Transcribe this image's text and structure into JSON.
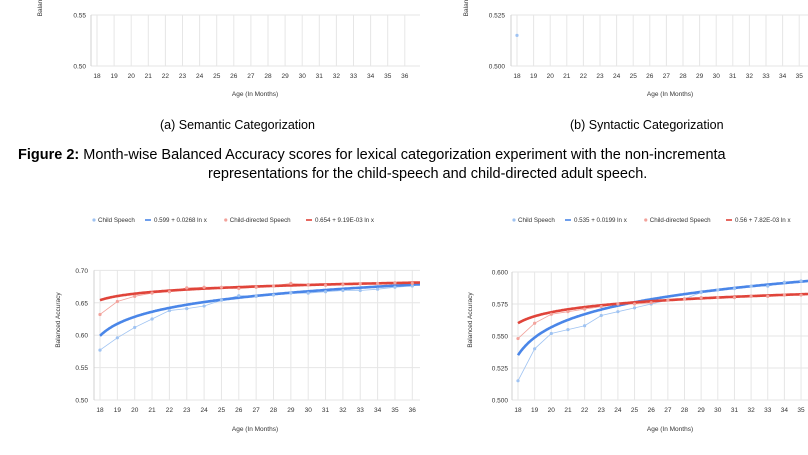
{
  "captions": {
    "a": "(a) Semantic Categorization",
    "b": "(b) Syntactic Categorization",
    "figure_label": "Figure 2:",
    "figure_line1": " Month-wise Balanced Accuracy scores for lexical categorization experiment with the non-incrementa",
    "figure_line2": "representations for the child-speech and child-directed adult speech."
  },
  "colors": {
    "child": "#4a86e8",
    "child_points": "#9fc3f2",
    "adult": "#e0443a",
    "adult_points": "#f2a29b",
    "grid": "#e6e6e6"
  },
  "chart_data": [
    {
      "type": "scatter",
      "id": "top-left",
      "xlabel": "Age (In Months)",
      "ylabel": "Balan",
      "x_ticks": [
        18,
        19,
        20,
        21,
        22,
        23,
        24,
        25,
        26,
        27,
        28,
        29,
        30,
        31,
        32,
        33,
        34,
        35,
        36
      ],
      "y_ticks": [
        "0.50",
        "0.55"
      ],
      "ylim": [
        0.5,
        0.57
      ],
      "series": [
        {
          "key": "child",
          "trend": {
            "a": 0.599,
            "b": 0.0268
          }
        }
      ]
    },
    {
      "type": "scatter",
      "id": "top-right",
      "xlabel": "Age (In Months)",
      "ylabel": "Balan",
      "x_ticks": [
        18,
        19,
        20,
        21,
        22,
        23,
        24,
        25,
        26,
        27,
        28,
        29,
        30,
        31,
        32,
        33,
        34,
        35
      ],
      "y_ticks": [
        "0.500",
        "0.525"
      ],
      "ylim": [
        0.5,
        0.535
      ],
      "series": [
        {
          "key": "child",
          "trend": {
            "a": 0.535,
            "b": 0.0199
          },
          "points": [
            [
              18,
              0.515
            ]
          ]
        }
      ]
    },
    {
      "type": "scatter",
      "id": "bottom-left",
      "xlabel": "Age (In Months)",
      "ylabel": "Balanced Accuracy",
      "x_ticks": [
        18,
        19,
        20,
        21,
        22,
        23,
        24,
        25,
        26,
        27,
        28,
        29,
        30,
        31,
        32,
        33,
        34,
        35,
        36
      ],
      "y_ticks": [
        "0.50",
        "0.55",
        "0.60",
        "0.65",
        "0.70"
      ],
      "ylim": [
        0.5,
        0.7
      ],
      "legend": [
        {
          "key": "child_points",
          "label": "Child Speech",
          "marker": "dot"
        },
        {
          "key": "child",
          "label": "0.599 + 0.0268 ln x",
          "marker": "line"
        },
        {
          "key": "adult_points",
          "label": "Child-directed Speech",
          "marker": "dot"
        },
        {
          "key": "adult",
          "label": "0.654 + 9.19E-03 ln x",
          "marker": "line"
        }
      ],
      "series": [
        {
          "key": "child",
          "name": "Child Speech",
          "trend": {
            "a": 0.599,
            "b": 0.0268
          },
          "points": [
            [
              18,
              0.577
            ],
            [
              19,
              0.596
            ],
            [
              20,
              0.612
            ],
            [
              21,
              0.625
            ],
            [
              22,
              0.638
            ],
            [
              23,
              0.641
            ],
            [
              24,
              0.645
            ],
            [
              25,
              0.654
            ],
            [
              26,
              0.661
            ],
            [
              27,
              0.66
            ],
            [
              28,
              0.662
            ],
            [
              29,
              0.665
            ],
            [
              30,
              0.665
            ],
            [
              31,
              0.667
            ],
            [
              32,
              0.669
            ],
            [
              33,
              0.669
            ],
            [
              34,
              0.671
            ],
            [
              35,
              0.674
            ],
            [
              36,
              0.676
            ]
          ]
        },
        {
          "key": "adult",
          "name": "Child-directed Speech",
          "trend": {
            "a": 0.654,
            "b": 0.00919
          },
          "points": [
            [
              18,
              0.632
            ],
            [
              19,
              0.652
            ],
            [
              20,
              0.66
            ],
            [
              21,
              0.665
            ],
            [
              22,
              0.667
            ],
            [
              23,
              0.673
            ],
            [
              24,
              0.674
            ],
            [
              25,
              0.674
            ],
            [
              26,
              0.672
            ],
            [
              27,
              0.674
            ],
            [
              28,
              0.676
            ],
            [
              29,
              0.68
            ],
            [
              30,
              0.678
            ],
            [
              31,
              0.677
            ],
            [
              32,
              0.678
            ],
            [
              33,
              0.679
            ],
            [
              34,
              0.68
            ],
            [
              35,
              0.681
            ],
            [
              36,
              0.68
            ]
          ]
        }
      ]
    },
    {
      "type": "scatter",
      "id": "bottom-right",
      "xlabel": "Age (In Months)",
      "ylabel": "Balanced Accuracy",
      "x_ticks": [
        18,
        19,
        20,
        21,
        22,
        23,
        24,
        25,
        26,
        27,
        28,
        29,
        30,
        31,
        32,
        33,
        34,
        35
      ],
      "y_ticks": [
        "0.500",
        "0.525",
        "0.550",
        "0.575",
        "0.600"
      ],
      "ylim": [
        0.5,
        0.6
      ],
      "legend": [
        {
          "key": "child_points",
          "label": "Child Speech",
          "marker": "dot"
        },
        {
          "key": "child",
          "label": "0.535 + 0.0199 ln x",
          "marker": "line"
        },
        {
          "key": "adult_points",
          "label": "Child-directed Speech",
          "marker": "dot"
        },
        {
          "key": "adult",
          "label": "0.56 + 7.82E-03 ln x",
          "marker": "line"
        }
      ],
      "series": [
        {
          "key": "child",
          "name": "Child Speech",
          "trend": {
            "a": 0.535,
            "b": 0.0199
          },
          "points": [
            [
              18,
              0.515
            ],
            [
              19,
              0.54
            ],
            [
              20,
              0.552
            ],
            [
              21,
              0.555
            ],
            [
              22,
              0.558
            ],
            [
              23,
              0.566
            ],
            [
              24,
              0.569
            ],
            [
              25,
              0.572
            ],
            [
              26,
              0.575
            ],
            [
              27,
              0.578
            ],
            [
              28,
              0.579
            ],
            [
              29,
              0.584
            ],
            [
              30,
              0.586
            ],
            [
              31,
              0.587
            ],
            [
              32,
              0.589
            ],
            [
              33,
              0.589
            ],
            [
              34,
              0.592
            ],
            [
              35,
              0.593
            ]
          ]
        },
        {
          "key": "adult",
          "name": "Child-directed Speech",
          "trend": {
            "a": 0.56,
            "b": 0.00782
          },
          "points": [
            [
              18,
              0.548
            ],
            [
              19,
              0.56
            ],
            [
              20,
              0.567
            ],
            [
              21,
              0.569
            ],
            [
              22,
              0.571
            ],
            [
              23,
              0.573
            ],
            [
              24,
              0.575
            ],
            [
              25,
              0.575
            ],
            [
              26,
              0.576
            ],
            [
              27,
              0.578
            ],
            [
              28,
              0.579
            ],
            [
              29,
              0.58
            ],
            [
              30,
              0.58
            ],
            [
              31,
              0.58
            ],
            [
              32,
              0.581
            ],
            [
              33,
              0.581
            ],
            [
              34,
              0.582
            ],
            [
              35,
              0.582
            ]
          ]
        }
      ]
    }
  ]
}
